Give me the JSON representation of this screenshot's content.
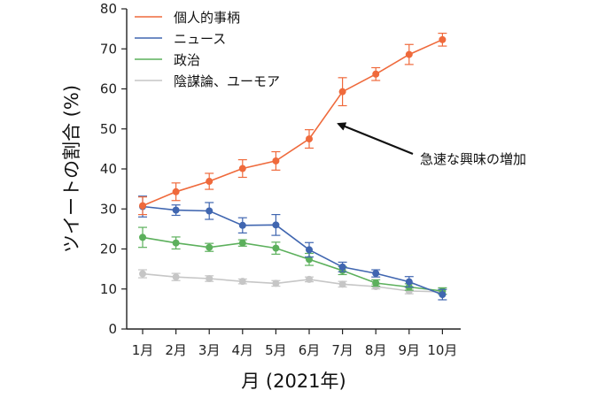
{
  "chart_data": {
    "type": "line",
    "xlabel": "月 (2021年)",
    "ylabel": "ツイートの割合 (%)",
    "ylim": [
      0,
      80
    ],
    "yticks": [
      0,
      10,
      20,
      30,
      40,
      50,
      60,
      70,
      80
    ],
    "categories": [
      "1月",
      "2月",
      "3月",
      "4月",
      "5月",
      "6月",
      "7月",
      "8月",
      "9月",
      "10月"
    ],
    "legend_position": "top-left",
    "grid": false,
    "series": [
      {
        "name": "個人的事柄",
        "color": "#ef6a3c",
        "values": [
          30.8,
          34.3,
          36.9,
          40.1,
          42.0,
          47.5,
          59.3,
          63.7,
          68.6,
          72.3
        ],
        "err": [
          2.2,
          2.2,
          2.0,
          2.2,
          2.3,
          2.3,
          3.5,
          1.6,
          2.5,
          1.6
        ]
      },
      {
        "name": "ニュース",
        "color": "#4066b0",
        "values": [
          30.6,
          29.7,
          29.5,
          25.9,
          26.0,
          19.8,
          15.5,
          13.9,
          11.8,
          8.6
        ],
        "err": [
          2.6,
          1.3,
          2.1,
          1.9,
          2.6,
          1.8,
          1.2,
          0.9,
          1.3,
          1.3
        ]
      },
      {
        "name": "政治",
        "color": "#5cb05c",
        "values": [
          22.9,
          21.5,
          20.4,
          21.5,
          20.2,
          17.4,
          14.6,
          11.5,
          10.5,
          9.5
        ],
        "err": [
          2.5,
          1.5,
          1.0,
          0.8,
          1.5,
          1.5,
          1.0,
          0.8,
          0.8,
          0.8
        ]
      },
      {
        "name": "陰謀論、ユーモア",
        "color": "#c6c6c6",
        "values": [
          13.8,
          13.0,
          12.6,
          11.9,
          11.4,
          12.4,
          11.2,
          10.6,
          9.5,
          9.3
        ],
        "err": [
          1.0,
          0.9,
          0.7,
          0.6,
          0.7,
          0.6,
          0.7,
          0.6,
          0.7,
          0.6
        ]
      }
    ],
    "annotations": [
      {
        "text": "急速な興味の増加",
        "arrow_to": {
          "x": "7月",
          "y": 50
        }
      }
    ]
  }
}
